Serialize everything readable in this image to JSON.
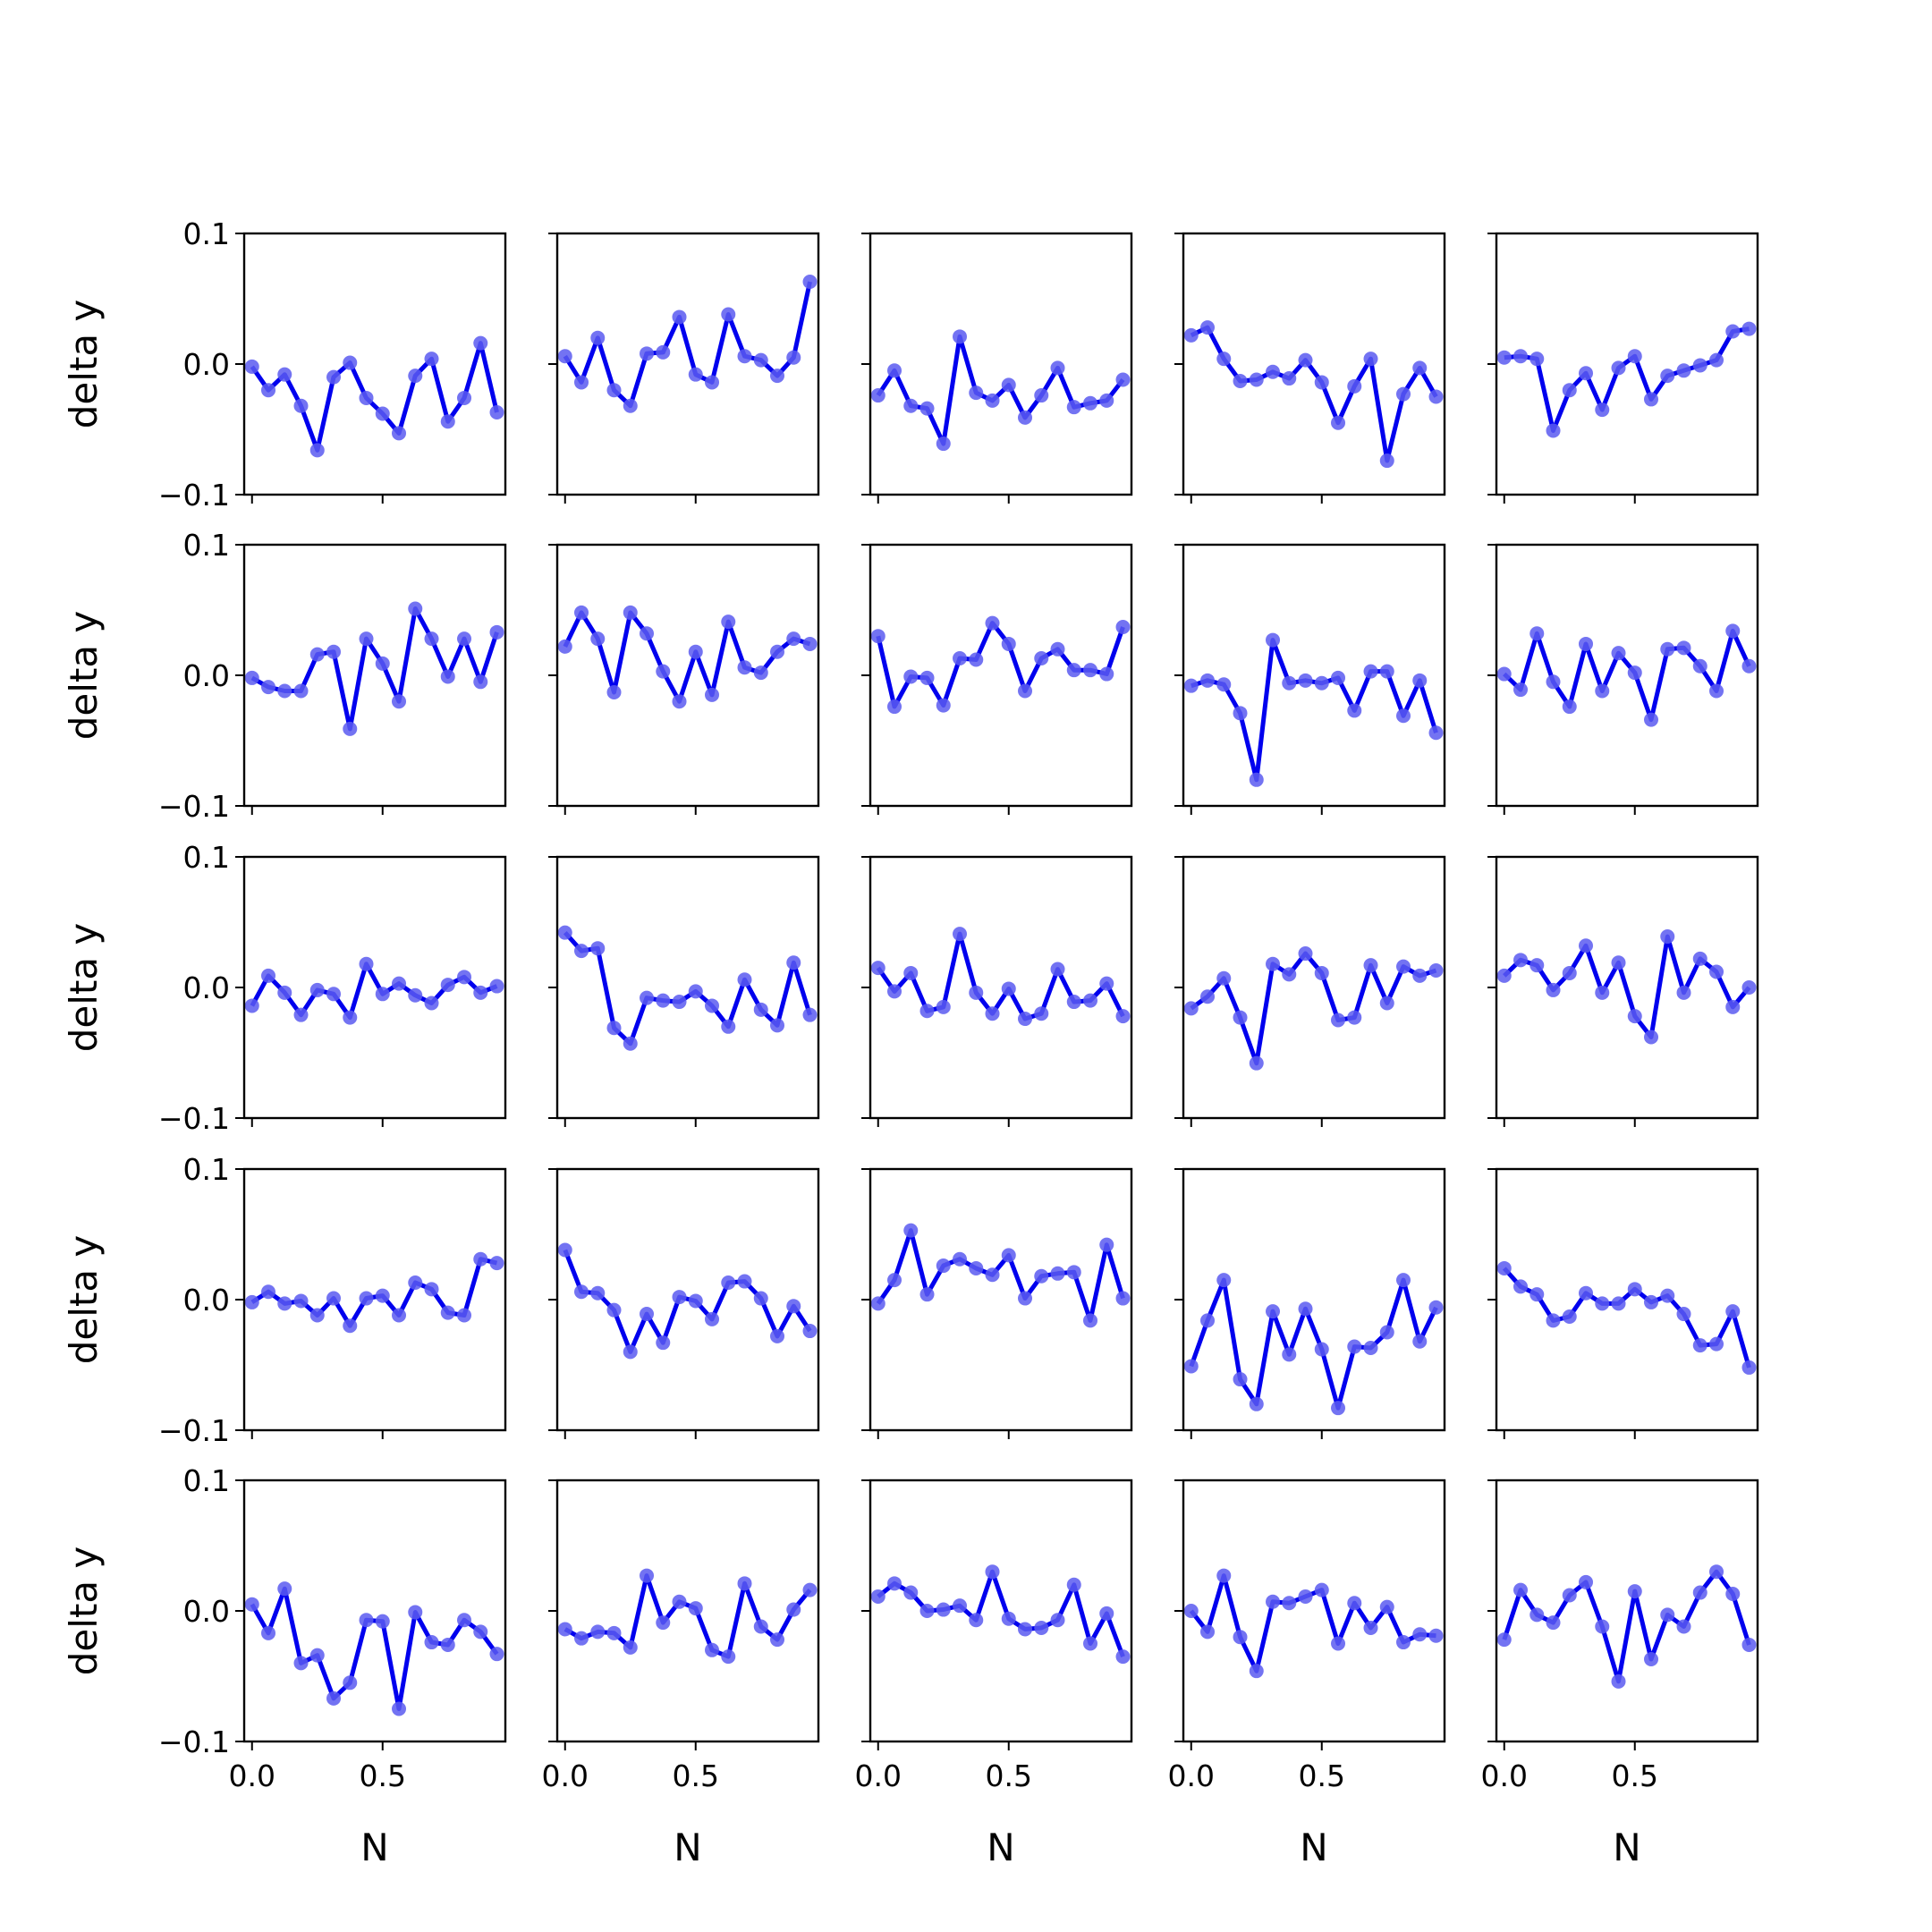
{
  "chart_data": {
    "type": "line",
    "layout": "grid",
    "rows": 5,
    "cols": 5,
    "xlabel": "N",
    "ylabel": "delta y",
    "xlim": [
      -0.03,
      0.97
    ],
    "ylim": [
      -0.1,
      0.1
    ],
    "xticks": [
      0.0,
      0.5
    ],
    "xtick_labels": [
      "0.0",
      "0.5"
    ],
    "yticks": [
      -0.1,
      0.0,
      0.1
    ],
    "ytick_labels": [
      "−0.1",
      "0.0",
      "0.1"
    ],
    "x": [
      0.0,
      0.0625,
      0.125,
      0.1875,
      0.25,
      0.3125,
      0.375,
      0.4375,
      0.5,
      0.5625,
      0.625,
      0.6875,
      0.75,
      0.8125,
      0.875,
      0.9375
    ],
    "line_color": "#0000ee",
    "marker_color": "#5b5bf0",
    "panels": [
      {
        "y": [
          -0.002,
          -0.02,
          -0.008,
          -0.032,
          -0.066,
          -0.01,
          0.001,
          -0.026,
          -0.038,
          -0.053,
          -0.009,
          0.004,
          -0.044,
          -0.026,
          0.016,
          -0.037
        ]
      },
      {
        "y": [
          0.006,
          -0.014,
          0.02,
          -0.02,
          -0.032,
          0.008,
          0.009,
          0.036,
          -0.008,
          -0.014,
          0.038,
          0.006,
          0.003,
          -0.009,
          0.005,
          0.063
        ]
      },
      {
        "y": [
          -0.024,
          -0.005,
          -0.032,
          -0.034,
          -0.061,
          0.021,
          -0.022,
          -0.028,
          -0.016,
          -0.041,
          -0.024,
          -0.003,
          -0.033,
          -0.03,
          -0.028,
          -0.012
        ]
      },
      {
        "y": [
          0.022,
          0.028,
          0.004,
          -0.013,
          -0.012,
          -0.006,
          -0.011,
          0.003,
          -0.014,
          -0.045,
          -0.017,
          0.004,
          -0.074,
          -0.023,
          -0.003,
          -0.025
        ]
      },
      {
        "y": [
          0.005,
          0.006,
          0.004,
          -0.051,
          -0.02,
          -0.007,
          -0.035,
          -0.003,
          0.006,
          -0.027,
          -0.009,
          -0.005,
          -0.001,
          0.003,
          0.025,
          0.027
        ]
      },
      {
        "y": [
          -0.002,
          -0.009,
          -0.012,
          -0.012,
          0.016,
          0.018,
          -0.041,
          0.028,
          0.009,
          -0.02,
          0.051,
          0.028,
          -0.001,
          0.028,
          -0.005,
          0.033
        ]
      },
      {
        "y": [
          0.022,
          0.048,
          0.028,
          -0.013,
          0.048,
          0.032,
          0.003,
          -0.02,
          0.018,
          -0.015,
          0.041,
          0.006,
          0.002,
          0.018,
          0.028,
          0.024
        ]
      },
      {
        "y": [
          0.03,
          -0.024,
          -0.001,
          -0.002,
          -0.023,
          0.013,
          0.012,
          0.04,
          0.024,
          -0.012,
          0.013,
          0.02,
          0.004,
          0.004,
          0.001,
          0.037
        ]
      },
      {
        "y": [
          -0.008,
          -0.004,
          -0.007,
          -0.029,
          -0.08,
          0.027,
          -0.006,
          -0.004,
          -0.006,
          -0.002,
          -0.027,
          0.003,
          0.003,
          -0.031,
          -0.004,
          -0.044
        ]
      },
      {
        "y": [
          0.001,
          -0.011,
          0.032,
          -0.005,
          -0.024,
          0.024,
          -0.012,
          0.017,
          0.002,
          -0.034,
          0.02,
          0.021,
          0.007,
          -0.012,
          0.034,
          0.007
        ]
      },
      {
        "y": [
          -0.014,
          0.009,
          -0.004,
          -0.021,
          -0.002,
          -0.005,
          -0.023,
          0.018,
          -0.005,
          0.003,
          -0.006,
          -0.012,
          0.002,
          0.008,
          -0.004,
          0.001
        ]
      },
      {
        "y": [
          0.042,
          0.028,
          0.03,
          -0.031,
          -0.043,
          -0.008,
          -0.01,
          -0.011,
          -0.003,
          -0.014,
          -0.03,
          0.006,
          -0.017,
          -0.029,
          0.019,
          -0.021
        ]
      },
      {
        "y": [
          0.015,
          -0.003,
          0.011,
          -0.018,
          -0.015,
          0.041,
          -0.004,
          -0.02,
          -0.001,
          -0.024,
          -0.02,
          0.014,
          -0.011,
          -0.01,
          0.003,
          -0.022
        ]
      },
      {
        "y": [
          -0.016,
          -0.007,
          0.007,
          -0.023,
          -0.058,
          0.018,
          0.01,
          0.026,
          0.011,
          -0.025,
          -0.023,
          0.017,
          -0.012,
          0.016,
          0.009,
          0.013
        ]
      },
      {
        "y": [
          0.009,
          0.021,
          0.017,
          -0.002,
          0.011,
          0.032,
          -0.004,
          0.019,
          -0.022,
          -0.038,
          0.039,
          -0.004,
          0.022,
          0.012,
          -0.015,
          0.0
        ]
      },
      {
        "y": [
          -0.002,
          0.006,
          -0.003,
          -0.001,
          -0.012,
          0.001,
          -0.02,
          0.001,
          0.003,
          -0.012,
          0.013,
          0.008,
          -0.01,
          -0.012,
          0.031,
          0.028
        ]
      },
      {
        "y": [
          0.038,
          0.006,
          0.005,
          -0.008,
          -0.04,
          -0.011,
          -0.033,
          0.002,
          -0.001,
          -0.015,
          0.013,
          0.014,
          0.001,
          -0.028,
          -0.005,
          -0.024
        ]
      },
      {
        "y": [
          -0.003,
          0.015,
          0.053,
          0.004,
          0.026,
          0.031,
          0.024,
          0.019,
          0.034,
          0.001,
          0.018,
          0.02,
          0.021,
          -0.016,
          0.042,
          0.001
        ]
      },
      {
        "y": [
          -0.051,
          -0.016,
          0.015,
          -0.061,
          -0.08,
          -0.009,
          -0.042,
          -0.007,
          -0.038,
          -0.083,
          -0.036,
          -0.037,
          -0.025,
          0.015,
          -0.032,
          -0.006
        ]
      },
      {
        "y": [
          0.024,
          0.01,
          0.004,
          -0.016,
          -0.013,
          0.005,
          -0.003,
          -0.003,
          0.008,
          -0.002,
          0.003,
          -0.011,
          -0.035,
          -0.034,
          -0.009,
          -0.052
        ]
      },
      {
        "y": [
          0.005,
          -0.017,
          0.017,
          -0.04,
          -0.034,
          -0.067,
          -0.055,
          -0.007,
          -0.008,
          -0.075,
          -0.001,
          -0.024,
          -0.026,
          -0.007,
          -0.016,
          -0.033
        ]
      },
      {
        "y": [
          -0.014,
          -0.021,
          -0.016,
          -0.017,
          -0.028,
          0.027,
          -0.009,
          0.007,
          0.002,
          -0.03,
          -0.035,
          0.021,
          -0.012,
          -0.022,
          0.001,
          0.016
        ]
      },
      {
        "y": [
          0.011,
          0.021,
          0.014,
          0.0,
          0.001,
          0.004,
          -0.007,
          0.03,
          -0.006,
          -0.014,
          -0.013,
          -0.007,
          0.02,
          -0.025,
          -0.002,
          -0.035
        ]
      },
      {
        "y": [
          0.0,
          -0.016,
          0.027,
          -0.02,
          -0.046,
          0.007,
          0.006,
          0.011,
          0.016,
          -0.025,
          0.006,
          -0.013,
          0.003,
          -0.024,
          -0.018,
          -0.019
        ]
      },
      {
        "y": [
          -0.022,
          0.016,
          -0.003,
          -0.009,
          0.012,
          0.022,
          -0.012,
          -0.054,
          0.015,
          -0.037,
          -0.003,
          -0.012,
          0.014,
          0.03,
          0.013,
          -0.026
        ]
      }
    ]
  }
}
